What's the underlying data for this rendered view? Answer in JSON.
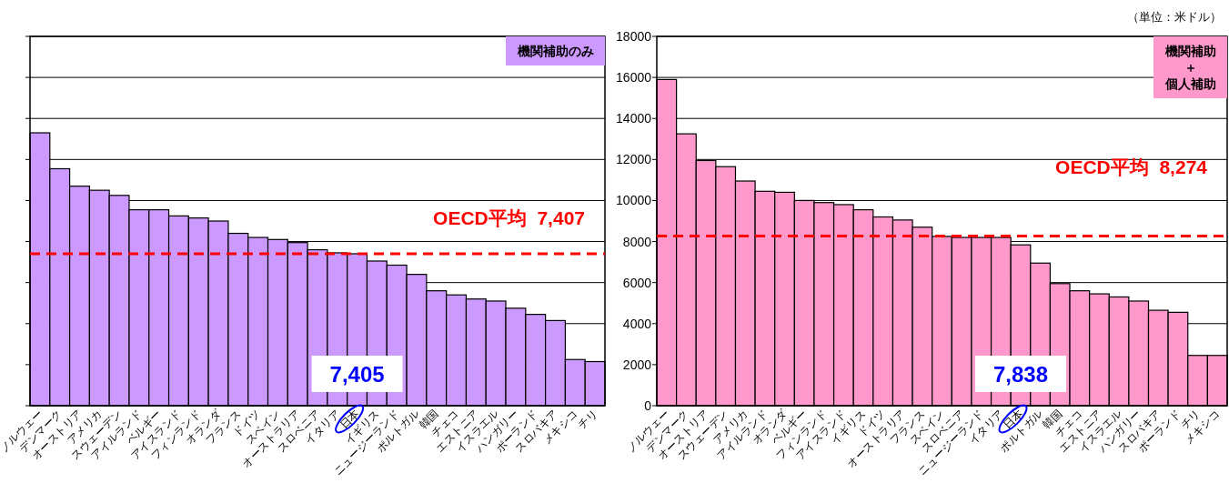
{
  "chart_data": [
    {
      "type": "bar",
      "categories": [
        "ノルウェー",
        "デンマーク",
        "オーストリア",
        "アメリカ",
        "スウェーデン",
        "アイルランド",
        "ベルギー",
        "アイスランド",
        "フィンランド",
        "オランダ",
        "フランス",
        "ドイツ",
        "スペイン",
        "オーストラリア",
        "スロベニア",
        "イタリア",
        "日本",
        "イギリス",
        "ニュージーランド",
        "ポルトガル",
        "韓国",
        "チェコ",
        "エストニア",
        "イスラエル",
        "ハンガリー",
        "ポーランド",
        "スロバキア",
        "メキシコ",
        "チリ"
      ],
      "series": [
        {
          "name": "機関補助のみ",
          "color": "#cc99ff",
          "values": [
            13300,
            11550,
            10700,
            10500,
            10250,
            9550,
            9550,
            9250,
            9150,
            9000,
            8400,
            8200,
            8100,
            7950,
            7600,
            7450,
            7405,
            7050,
            6850,
            6400,
            5600,
            5400,
            5200,
            5100,
            4750,
            4450,
            4150,
            2250,
            2150
          ],
          "value_labels": [
            null,
            null,
            null,
            null,
            null,
            null,
            null,
            null,
            null,
            null,
            null,
            null,
            null,
            null,
            null,
            null,
            "7,405",
            null,
            null,
            null,
            null,
            null,
            null,
            null,
            null,
            null,
            null,
            null,
            null
          ]
        }
      ],
      "ylim": [
        0,
        18000
      ],
      "yticks": [
        {
          "value": 0,
          "label": null
        },
        {
          "value": 2000,
          "label": null
        },
        {
          "value": 4000,
          "label": null
        },
        {
          "value": 6000,
          "label": null
        },
        {
          "value": 8000,
          "label": null
        },
        {
          "value": 10000,
          "label": null
        },
        {
          "value": 12000,
          "label": null
        },
        {
          "value": 14000,
          "label": null
        },
        {
          "value": 16000,
          "label": null
        },
        {
          "value": 18000,
          "label": null
        }
      ],
      "tick_labels": "x",
      "grid": "y",
      "legend": "top right",
      "ref_lines": [
        {
          "axis": "y",
          "value": 7407,
          "label": "OECD平均  7,407",
          "color": "#ff0000",
          "line_style": "dashed"
        }
      ]
    },
    {
      "type": "bar",
      "categories": [
        "ノルウェー",
        "デンマーク",
        "オーストリア",
        "スウェーデン",
        "アメリカ",
        "アイルランド",
        "オランダ",
        "ベルギー",
        "フィンランド",
        "アイスランド",
        "イギリス",
        "ドイツ",
        "オーストラリア",
        "フランス",
        "スペイン",
        "スロベニア",
        "ニュージーランド",
        "イタリア",
        "日本",
        "ポルトガル",
        "韓国",
        "チェコ",
        "エストニア",
        "イスラエル",
        "ハンガリー",
        "スロバキア",
        "ポーランド",
        "チリ",
        "メキシコ"
      ],
      "series": [
        {
          "name": "機関補助＋個人補助",
          "color": "#ff99cc",
          "values": [
            15900,
            13250,
            11950,
            11650,
            10950,
            10450,
            10400,
            10000,
            9900,
            9800,
            9550,
            9200,
            9050,
            8700,
            8250,
            8200,
            8200,
            8200,
            7838,
            6950,
            5950,
            5600,
            5450,
            5300,
            5100,
            4650,
            4550,
            2450,
            2450
          ],
          "value_labels": [
            null,
            null,
            null,
            null,
            null,
            null,
            null,
            null,
            null,
            null,
            null,
            null,
            null,
            null,
            null,
            null,
            null,
            null,
            "7,838",
            null,
            null,
            null,
            null,
            null,
            null,
            null,
            null,
            null,
            null
          ]
        }
      ],
      "ylim": [
        0,
        18000
      ],
      "yticks": [
        0,
        2000,
        4000,
        6000,
        8000,
        10000,
        12000,
        14000,
        16000,
        18000
      ],
      "grid": "y",
      "legend": "top right",
      "ref_lines": [
        {
          "axis": "y",
          "value": 8274,
          "label": "OECD平均  8,274",
          "color": "#ff0000",
          "line_style": "dashed"
        }
      ],
      "annotations": [
        "（単位：米ドル）"
      ]
    }
  ]
}
